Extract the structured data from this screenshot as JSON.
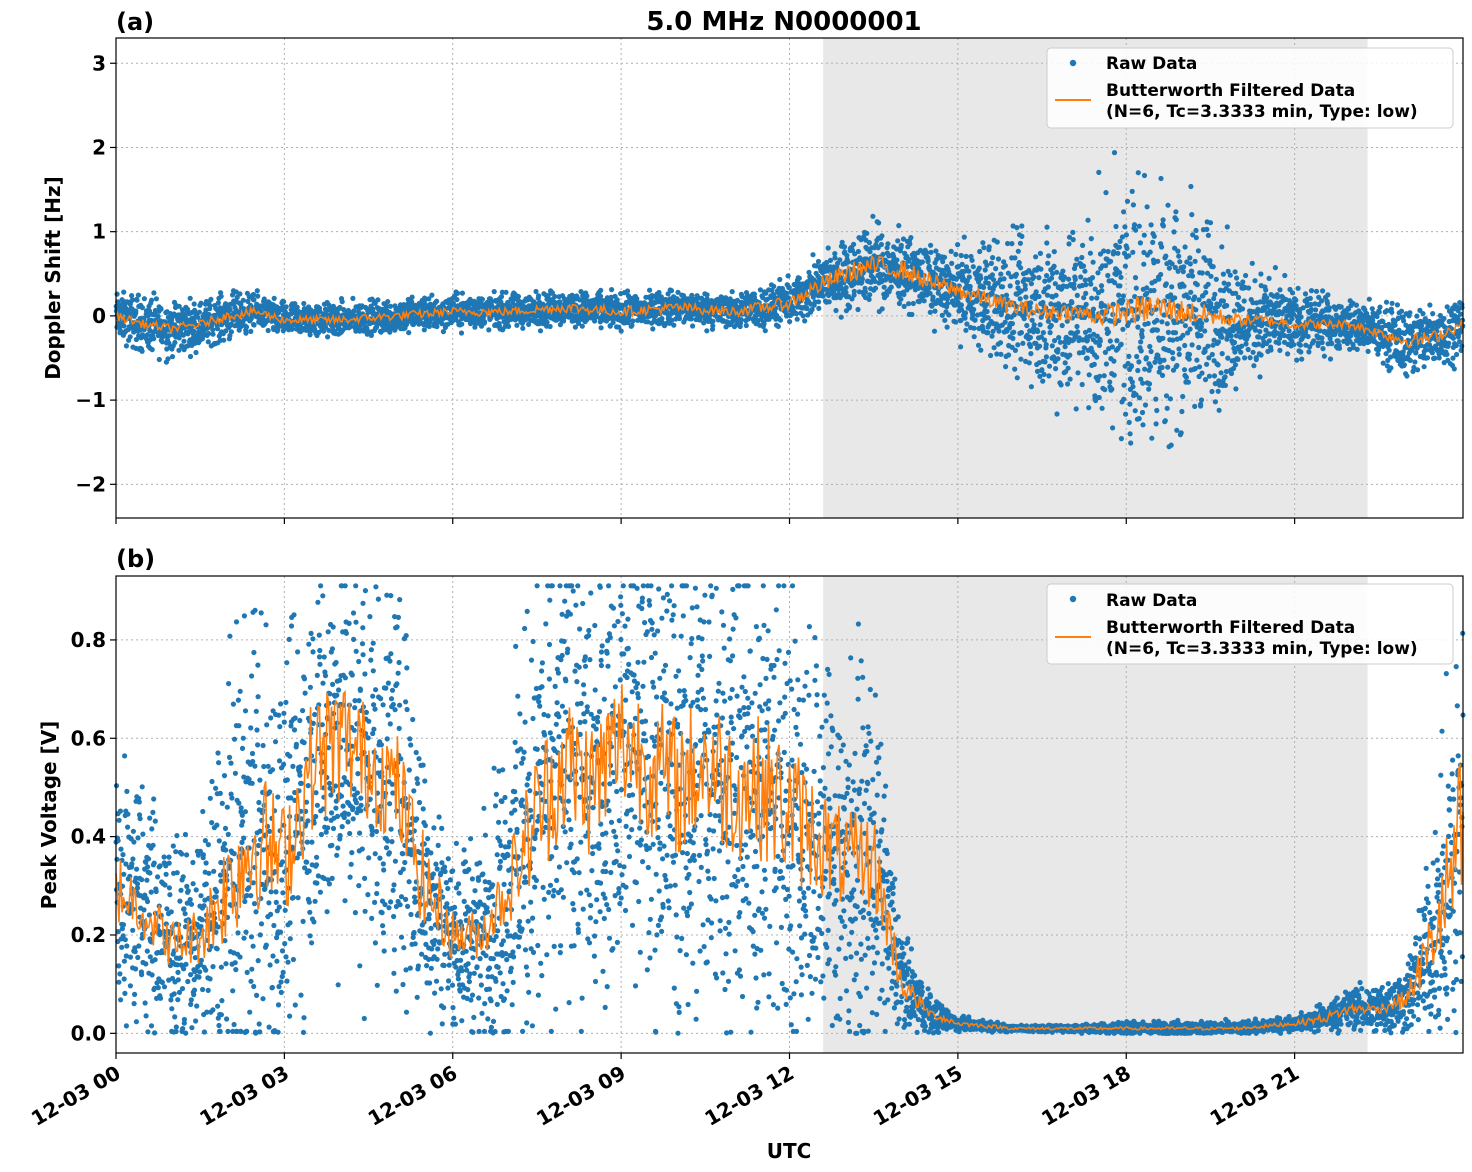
{
  "figure": {
    "title": "5.0 MHz N0000001",
    "xlabel": "UTC",
    "x_tick_labels": [
      "12-03 00",
      "12-03 03",
      "12-03 06",
      "12-03 09",
      "12-03 12",
      "12-03 15",
      "12-03 18",
      "12-03 21"
    ],
    "shaded_interval_utc_hours": [
      12.6,
      22.3
    ],
    "shade_color": "#e8e8e8"
  },
  "legend": {
    "raw_label": "Raw Data",
    "filtered_label_line1": "Butterworth Filtered Data",
    "filtered_label_line2": "(N=6, Tc=3.3333 min, Type: low)",
    "placement": "upper-right"
  },
  "colors": {
    "raw": "#1f77b4",
    "filtered": "#ff7f0e",
    "grid": "#b0b0b0"
  },
  "chart_data": [
    {
      "type": "scatter",
      "panel_label": "(a)",
      "title": "5.0 MHz N0000001",
      "xlabel": "",
      "ylabel": "Doppler Shift [Hz]",
      "x_unit": "hours UTC on 12-03",
      "xlim": [
        0,
        24
      ],
      "ylim": [
        -2.4,
        3.3
      ],
      "yticks": [
        -2,
        -1,
        0,
        1,
        2,
        3
      ],
      "ytick_labels": [
        "−2",
        "−1",
        "0",
        "1",
        "2",
        "3"
      ],
      "grid": true,
      "series": [
        {
          "name": "Raw Data",
          "style": "points",
          "x": [
            0,
            0.5,
            1,
            1.5,
            2,
            2.5,
            3,
            4,
            5,
            6,
            7,
            8,
            9,
            10,
            11,
            12,
            12.5,
            13,
            13.5,
            14,
            14.5,
            15,
            15.5,
            16,
            16.5,
            17,
            17.5,
            18,
            18.5,
            19,
            19.5,
            20,
            20.5,
            21,
            21.5,
            22,
            22.5,
            23,
            23.5,
            24
          ],
          "y": [
            0.0,
            -0.1,
            -0.15,
            -0.1,
            0.0,
            0.05,
            -0.05,
            -0.05,
            0.0,
            0.05,
            0.05,
            0.1,
            0.05,
            0.1,
            0.05,
            0.15,
            0.35,
            0.5,
            0.6,
            0.55,
            0.4,
            0.3,
            0.2,
            0.1,
            0.05,
            0.05,
            0.0,
            0.05,
            0.1,
            0.05,
            0.0,
            -0.05,
            -0.05,
            -0.1,
            -0.1,
            -0.1,
            -0.2,
            -0.3,
            -0.25,
            -0.1
          ],
          "spread": [
            0.2,
            0.25,
            0.25,
            0.2,
            0.2,
            0.15,
            0.15,
            0.15,
            0.15,
            0.15,
            0.15,
            0.15,
            0.15,
            0.15,
            0.15,
            0.2,
            0.25,
            0.3,
            0.35,
            0.3,
            0.3,
            0.35,
            0.5,
            0.6,
            0.7,
            0.8,
            0.9,
            1.1,
            1.2,
            1.0,
            0.8,
            0.5,
            0.4,
            0.3,
            0.25,
            0.2,
            0.25,
            0.3,
            0.3,
            0.25
          ]
        },
        {
          "name": "Butterworth Filtered Data (N=6, Tc=3.3333 min, Type: low)",
          "style": "line",
          "x": [
            0,
            0.5,
            1,
            1.5,
            2,
            2.5,
            3,
            4,
            5,
            6,
            7,
            8,
            9,
            10,
            11,
            12,
            12.5,
            13,
            13.5,
            14,
            14.5,
            15,
            15.5,
            16,
            16.5,
            17,
            17.5,
            18,
            18.5,
            19,
            19.5,
            20,
            20.5,
            21,
            21.5,
            22,
            22.5,
            23,
            23.5,
            24
          ],
          "y": [
            0.0,
            -0.1,
            -0.15,
            -0.1,
            0.0,
            0.05,
            -0.05,
            -0.05,
            0.0,
            0.05,
            0.05,
            0.1,
            0.05,
            0.1,
            0.05,
            0.15,
            0.35,
            0.5,
            0.6,
            0.55,
            0.4,
            0.3,
            0.2,
            0.1,
            0.05,
            0.05,
            0.0,
            0.05,
            0.1,
            0.05,
            0.0,
            -0.05,
            -0.05,
            -0.1,
            -0.1,
            -0.1,
            -0.2,
            -0.3,
            -0.25,
            -0.1
          ],
          "jitter": [
            0.05,
            0.05,
            0.05,
            0.05,
            0.05,
            0.05,
            0.05,
            0.05,
            0.05,
            0.05,
            0.05,
            0.06,
            0.06,
            0.06,
            0.06,
            0.08,
            0.1,
            0.12,
            0.12,
            0.12,
            0.1,
            0.1,
            0.1,
            0.1,
            0.1,
            0.1,
            0.12,
            0.15,
            0.18,
            0.15,
            0.12,
            0.08,
            0.06,
            0.06,
            0.06,
            0.05,
            0.06,
            0.08,
            0.08,
            0.06
          ]
        }
      ]
    },
    {
      "type": "scatter",
      "panel_label": "(b)",
      "title": "",
      "xlabel": "UTC",
      "ylabel": "Peak Voltage [V]",
      "x_unit": "hours UTC on 12-03",
      "xlim": [
        0,
        24
      ],
      "ylim": [
        -0.04,
        0.93
      ],
      "yticks": [
        0.0,
        0.2,
        0.4,
        0.6,
        0.8
      ],
      "ytick_labels": [
        "0.0",
        "0.2",
        "0.4",
        "0.6",
        "0.8"
      ],
      "grid": true,
      "series": [
        {
          "name": "Raw Data",
          "style": "points",
          "x": [
            0,
            0.5,
            1,
            1.5,
            2,
            2.5,
            3,
            3.5,
            4,
            4.5,
            5,
            5.5,
            6,
            6.5,
            7,
            7.5,
            8,
            8.5,
            9,
            9.5,
            10,
            10.5,
            11,
            11.5,
            12,
            12.5,
            13,
            13.5,
            14,
            14.5,
            15,
            16,
            17,
            18,
            19,
            20,
            21,
            21.5,
            22,
            22.5,
            23,
            23.5,
            24
          ],
          "y": [
            0.3,
            0.25,
            0.18,
            0.2,
            0.3,
            0.4,
            0.35,
            0.55,
            0.6,
            0.55,
            0.5,
            0.3,
            0.2,
            0.2,
            0.3,
            0.45,
            0.55,
            0.5,
            0.6,
            0.55,
            0.5,
            0.55,
            0.5,
            0.5,
            0.45,
            0.4,
            0.35,
            0.35,
            0.1,
            0.04,
            0.02,
            0.01,
            0.01,
            0.01,
            0.01,
            0.01,
            0.02,
            0.03,
            0.05,
            0.05,
            0.07,
            0.2,
            0.4
          ],
          "spread": [
            0.2,
            0.2,
            0.15,
            0.15,
            0.3,
            0.35,
            0.3,
            0.3,
            0.3,
            0.3,
            0.3,
            0.2,
            0.12,
            0.15,
            0.25,
            0.35,
            0.35,
            0.35,
            0.3,
            0.35,
            0.35,
            0.35,
            0.35,
            0.35,
            0.35,
            0.3,
            0.3,
            0.25,
            0.08,
            0.03,
            0.01,
            0.005,
            0.005,
            0.01,
            0.01,
            0.01,
            0.01,
            0.02,
            0.03,
            0.04,
            0.05,
            0.15,
            0.4
          ]
        },
        {
          "name": "Butterworth Filtered Data (N=6, Tc=3.3333 min, Type: low)",
          "style": "line",
          "x": [
            0,
            0.5,
            1,
            1.5,
            2,
            2.5,
            3,
            3.5,
            4,
            4.5,
            5,
            5.5,
            6,
            6.5,
            7,
            7.5,
            8,
            8.5,
            9,
            9.5,
            10,
            10.5,
            11,
            11.5,
            12,
            12.5,
            13,
            13.5,
            14,
            14.5,
            15,
            16,
            17,
            18,
            19,
            20,
            21,
            21.5,
            22,
            22.5,
            23,
            23.5,
            24
          ],
          "y": [
            0.3,
            0.25,
            0.18,
            0.2,
            0.3,
            0.4,
            0.35,
            0.55,
            0.6,
            0.55,
            0.5,
            0.3,
            0.2,
            0.2,
            0.3,
            0.45,
            0.55,
            0.5,
            0.6,
            0.55,
            0.5,
            0.55,
            0.5,
            0.5,
            0.45,
            0.4,
            0.35,
            0.35,
            0.1,
            0.04,
            0.02,
            0.01,
            0.01,
            0.01,
            0.01,
            0.01,
            0.02,
            0.03,
            0.05,
            0.05,
            0.07,
            0.2,
            0.4
          ],
          "jitter": [
            0.08,
            0.06,
            0.05,
            0.06,
            0.12,
            0.15,
            0.12,
            0.14,
            0.14,
            0.12,
            0.12,
            0.1,
            0.05,
            0.05,
            0.08,
            0.14,
            0.15,
            0.15,
            0.15,
            0.15,
            0.15,
            0.15,
            0.15,
            0.15,
            0.15,
            0.12,
            0.1,
            0.1,
            0.03,
            0.01,
            0.005,
            0.003,
            0.003,
            0.003,
            0.003,
            0.003,
            0.005,
            0.01,
            0.01,
            0.01,
            0.02,
            0.08,
            0.2
          ]
        }
      ]
    }
  ]
}
